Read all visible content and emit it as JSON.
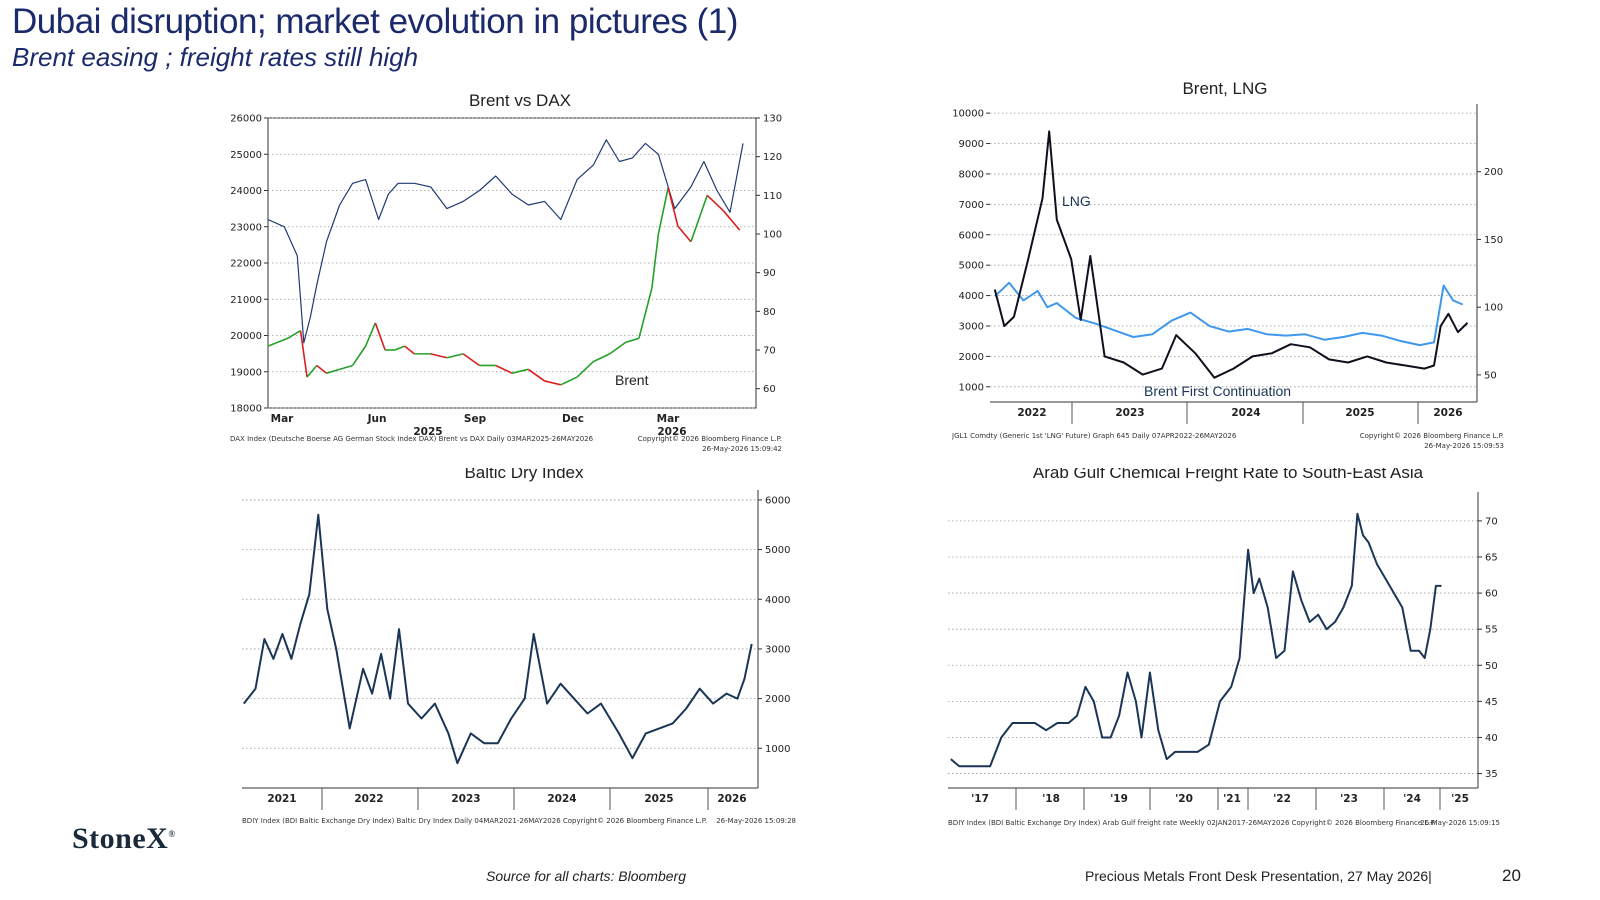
{
  "header": {
    "title": "Dubai disruption; market evolution in pictures (1)",
    "subtitle": "Brent easing ; freight rates still high"
  },
  "footer": {
    "source": "Source for all charts: Bloomberg",
    "presentation": "Precious Metals Front Desk Presentation, 27 May 2026|",
    "page": "20",
    "logo_text": "StoneX"
  },
  "colors": {
    "navy": "#1b2a6b",
    "dax": "#1f3b73",
    "brent_up": "#27a02a",
    "brent_down": "#d62020",
    "lng": "#3f98ec",
    "line_dark": "#0f0f1e",
    "bdi": "#1b3556"
  },
  "chart_data": [
    {
      "id": "brent-dax",
      "type": "line",
      "title": "Brent vs DAX",
      "x_tick_labels": [
        "Mar",
        "Jun",
        "Sep",
        "Dec",
        "Mar"
      ],
      "year_labels": [
        "2025",
        "2026"
      ],
      "y_left": {
        "range": [
          18000,
          26000
        ],
        "ticks": [
          "18000",
          "19000",
          "20000",
          "21000",
          "22000",
          "23000",
          "24000",
          "25000",
          "26000"
        ]
      },
      "y_right": {
        "range": [
          55,
          130
        ],
        "ticks": [
          "60",
          "70",
          "80",
          "90",
          "100",
          "110",
          "120",
          "130"
        ]
      },
      "annotations": [
        "Brent"
      ],
      "footnote_left": "DAX Index (Deutsche Boerse AG German Stock Index DAX) Brent vs DAX Daily 03MAR2025-26MAY2026",
      "footnote_right": "Copyright© 2026 Bloomberg Finance L.P.",
      "footnote_right2": "26-May-2026 15:09:42",
      "x_range": [
        0,
        15
      ],
      "series": [
        {
          "axis": "left",
          "color": "#1f3b73",
          "x": [
            0,
            0.5,
            0.9,
            1.1,
            1.3,
            1.5,
            1.8,
            2.2,
            2.6,
            3.0,
            3.4,
            3.7,
            4.0,
            4.5,
            5.0,
            5.5,
            6.0,
            6.5,
            7.0,
            7.5,
            8.0,
            8.5,
            9.0,
            9.5,
            10.0,
            10.4,
            10.8,
            11.2,
            11.6,
            12.0,
            12.5,
            13.0,
            13.4,
            13.8,
            14.2,
            14.6
          ],
          "values": [
            23200,
            23000,
            22200,
            19800,
            20500,
            21400,
            22600,
            23600,
            24200,
            24300,
            23200,
            23900,
            24200,
            24200,
            24100,
            23500,
            23700,
            24000,
            24400,
            23900,
            23600,
            23700,
            23200,
            24300,
            24700,
            25400,
            24800,
            24900,
            25300,
            25000,
            23500,
            24100,
            24800,
            24000,
            23400,
            25300
          ]
        },
        {
          "axis": "right",
          "color": "#27a02a",
          "down_color": "#d62020",
          "x": [
            0,
            0.6,
            1.0,
            1.2,
            1.5,
            1.8,
            2.2,
            2.6,
            3.0,
            3.3,
            3.6,
            3.9,
            4.2,
            4.5,
            5.0,
            5.5,
            6.0,
            6.5,
            7.0,
            7.5,
            8.0,
            8.5,
            9.0,
            9.5,
            10.0,
            10.5,
            11.0,
            11.4,
            11.8,
            12.0,
            12.3,
            12.6,
            13.0,
            13.5,
            14.0,
            14.5
          ],
          "values": [
            71,
            73,
            75,
            63,
            66,
            64,
            65,
            66,
            71,
            77,
            70,
            70,
            71,
            69,
            69,
            68,
            69,
            66,
            66,
            64,
            65,
            62,
            61,
            63,
            67,
            69,
            72,
            73,
            86,
            100,
            112,
            102,
            98,
            110,
            106,
            101
          ]
        }
      ]
    },
    {
      "id": "brent-lng",
      "type": "line",
      "title": "Brent, LNG",
      "x_tick_labels": [
        "2022",
        "2023",
        "2024",
        "2025",
        "2026"
      ],
      "y_left": {
        "range": [
          500,
          10300
        ],
        "ticks": [
          "1000",
          "2000",
          "3000",
          "4000",
          "5000",
          "6000",
          "7000",
          "8000",
          "9000",
          "10000"
        ]
      },
      "y_right": {
        "range": [
          30,
          250
        ],
        "ticks": [
          "50",
          "100",
          "150",
          "200"
        ]
      },
      "annotations": [
        "LNG",
        "Brent First Continuation"
      ],
      "footnote_left": "JGL1 Comdty (Generic 1st 'LNG' Future) Graph 645 Daily 07APR2022-26MAY2026",
      "footnote_right": "Copyright© 2026 Bloomberg Finance L.P.",
      "footnote_right2": "26-May-2026 15:09:53",
      "x_range": [
        2021.4,
        2026.5
      ],
      "series": [
        {
          "axis": "right",
          "color": "#3f98ec",
          "name": "LNG",
          "x": [
            2021.45,
            2021.6,
            2021.75,
            2021.9,
            2022.0,
            2022.1,
            2022.3,
            2022.5,
            2022.7,
            2022.9,
            2023.1,
            2023.3,
            2023.5,
            2023.7,
            2023.9,
            2024.1,
            2024.3,
            2024.5,
            2024.7,
            2024.9,
            2025.1,
            2025.3,
            2025.5,
            2025.7,
            2025.9,
            2026.05,
            2026.15,
            2026.25,
            2026.35
          ],
          "values": [
            108,
            118,
            105,
            112,
            100,
            103,
            92,
            88,
            83,
            78,
            80,
            90,
            96,
            86,
            82,
            84,
            80,
            79,
            80,
            76,
            78,
            81,
            79,
            75,
            72,
            74,
            116,
            105,
            102
          ]
        },
        {
          "axis": "left",
          "color": "#0f0f1e",
          "name": "Brent First Continuation",
          "x": [
            2021.45,
            2021.55,
            2021.65,
            2021.8,
            2021.95,
            2022.02,
            2022.1,
            2022.25,
            2022.35,
            2022.45,
            2022.6,
            2022.8,
            2023.0,
            2023.2,
            2023.35,
            2023.55,
            2023.75,
            2023.95,
            2024.15,
            2024.35,
            2024.55,
            2024.75,
            2024.95,
            2025.15,
            2025.35,
            2025.55,
            2025.75,
            2025.95,
            2026.05,
            2026.12,
            2026.2,
            2026.3,
            2026.4
          ],
          "values": [
            4200,
            3000,
            3300,
            5200,
            7200,
            9400,
            6500,
            5200,
            3200,
            5300,
            2000,
            1800,
            1400,
            1600,
            2700,
            2100,
            1300,
            1600,
            2000,
            2100,
            2400,
            2300,
            1900,
            1800,
            2000,
            1800,
            1700,
            1600,
            1700,
            3000,
            3400,
            2800,
            3100
          ]
        }
      ]
    },
    {
      "id": "baltic-dry",
      "type": "line",
      "title": "Baltic Dry Index",
      "x_tick_labels": [
        "2021",
        "2022",
        "2023",
        "2024",
        "2025",
        "2026"
      ],
      "y_right": {
        "range": [
          200,
          6200
        ],
        "ticks": [
          "1000",
          "2000",
          "3000",
          "4000",
          "5000",
          "6000"
        ]
      },
      "footnote_left": "BDIY Index (BDI Baltic Exchange Dry Index) Baltic Dry Index Daily 04MAR2021-26MAY2026 Copyright© 2026 Bloomberg Finance L.P.",
      "footnote_right": "26-May-2026 15:09:28",
      "x_range": [
        2020.6,
        2026.35
      ],
      "series": [
        {
          "axis": "right",
          "color": "#1b3556",
          "x": [
            2020.62,
            2020.75,
            2020.85,
            2020.95,
            2021.05,
            2021.15,
            2021.25,
            2021.35,
            2021.45,
            2021.55,
            2021.65,
            2021.8,
            2021.95,
            2022.05,
            2022.15,
            2022.25,
            2022.35,
            2022.45,
            2022.6,
            2022.75,
            2022.9,
            2023.0,
            2023.15,
            2023.3,
            2023.45,
            2023.6,
            2023.75,
            2023.85,
            2024.0,
            2024.15,
            2024.3,
            2024.45,
            2024.6,
            2024.8,
            2024.95,
            2025.1,
            2025.25,
            2025.4,
            2025.55,
            2025.7,
            2025.85,
            2026.0,
            2026.12,
            2026.2,
            2026.28
          ],
          "values": [
            1900,
            2200,
            3200,
            2800,
            3300,
            2800,
            3500,
            4100,
            5700,
            3800,
            3000,
            1400,
            2600,
            2100,
            2900,
            2000,
            3400,
            1900,
            1600,
            1900,
            1300,
            700,
            1300,
            1100,
            1100,
            1600,
            2000,
            3300,
            1900,
            2300,
            2000,
            1700,
            1900,
            1300,
            800,
            1300,
            1400,
            1500,
            1800,
            2200,
            1900,
            2100,
            2000,
            2400,
            3100
          ]
        }
      ]
    },
    {
      "id": "arab-gulf-freight",
      "type": "line",
      "title": "Arab Gulf Chemical Freight Rate to South-East Asia",
      "x_tick_labels": [
        "'17",
        "'18",
        "'19",
        "'20",
        "'21",
        "'22",
        "'23",
        "'24",
        "'25"
      ],
      "y_right": {
        "range": [
          33,
          74
        ],
        "ticks": [
          "35",
          "40",
          "45",
          "50",
          "55",
          "60",
          "65",
          "70"
        ]
      },
      "footnote_left": "BDIY Index (BDI Baltic Exchange Dry Index) Arab Gulf freight rate Weekly 02JAN2017-26MAY2026 Copyright© 2026 Bloomberg Finance L.P.",
      "footnote_right": "26-May-2026 15:09:15",
      "x_range": [
        2016.55,
        2026.0
      ],
      "series": [
        {
          "axis": "right",
          "color": "#1b3556",
          "x": [
            2016.6,
            2016.75,
            2016.9,
            2017.1,
            2017.3,
            2017.5,
            2017.7,
            2017.9,
            2018.1,
            2018.3,
            2018.5,
            2018.7,
            2018.85,
            2019.0,
            2019.15,
            2019.3,
            2019.45,
            2019.6,
            2019.75,
            2019.9,
            2020.0,
            2020.15,
            2020.3,
            2020.45,
            2020.6,
            2020.8,
            2021.0,
            2021.2,
            2021.4,
            2021.6,
            2021.75,
            2021.9,
            2022.0,
            2022.1,
            2022.25,
            2022.4,
            2022.55,
            2022.7,
            2022.85,
            2023.0,
            2023.15,
            2023.3,
            2023.45,
            2023.6,
            2023.75,
            2023.85,
            2023.95,
            2024.05,
            2024.2,
            2024.35,
            2024.5,
            2024.65,
            2024.8,
            2024.95,
            2025.05,
            2025.15,
            2025.25,
            2025.35
          ],
          "values": [
            37,
            36,
            36,
            36,
            36,
            40,
            42,
            42,
            42,
            41,
            42,
            42,
            43,
            47,
            45,
            40,
            40,
            43,
            49,
            45,
            40,
            49,
            41,
            37,
            38,
            38,
            38,
            39,
            45,
            47,
            51,
            66,
            60,
            62,
            58,
            51,
            52,
            63,
            59,
            56,
            57,
            55,
            56,
            58,
            61,
            71,
            68,
            67,
            64,
            62,
            60,
            58,
            52,
            52,
            51,
            55,
            61,
            61
          ]
        }
      ]
    }
  ]
}
